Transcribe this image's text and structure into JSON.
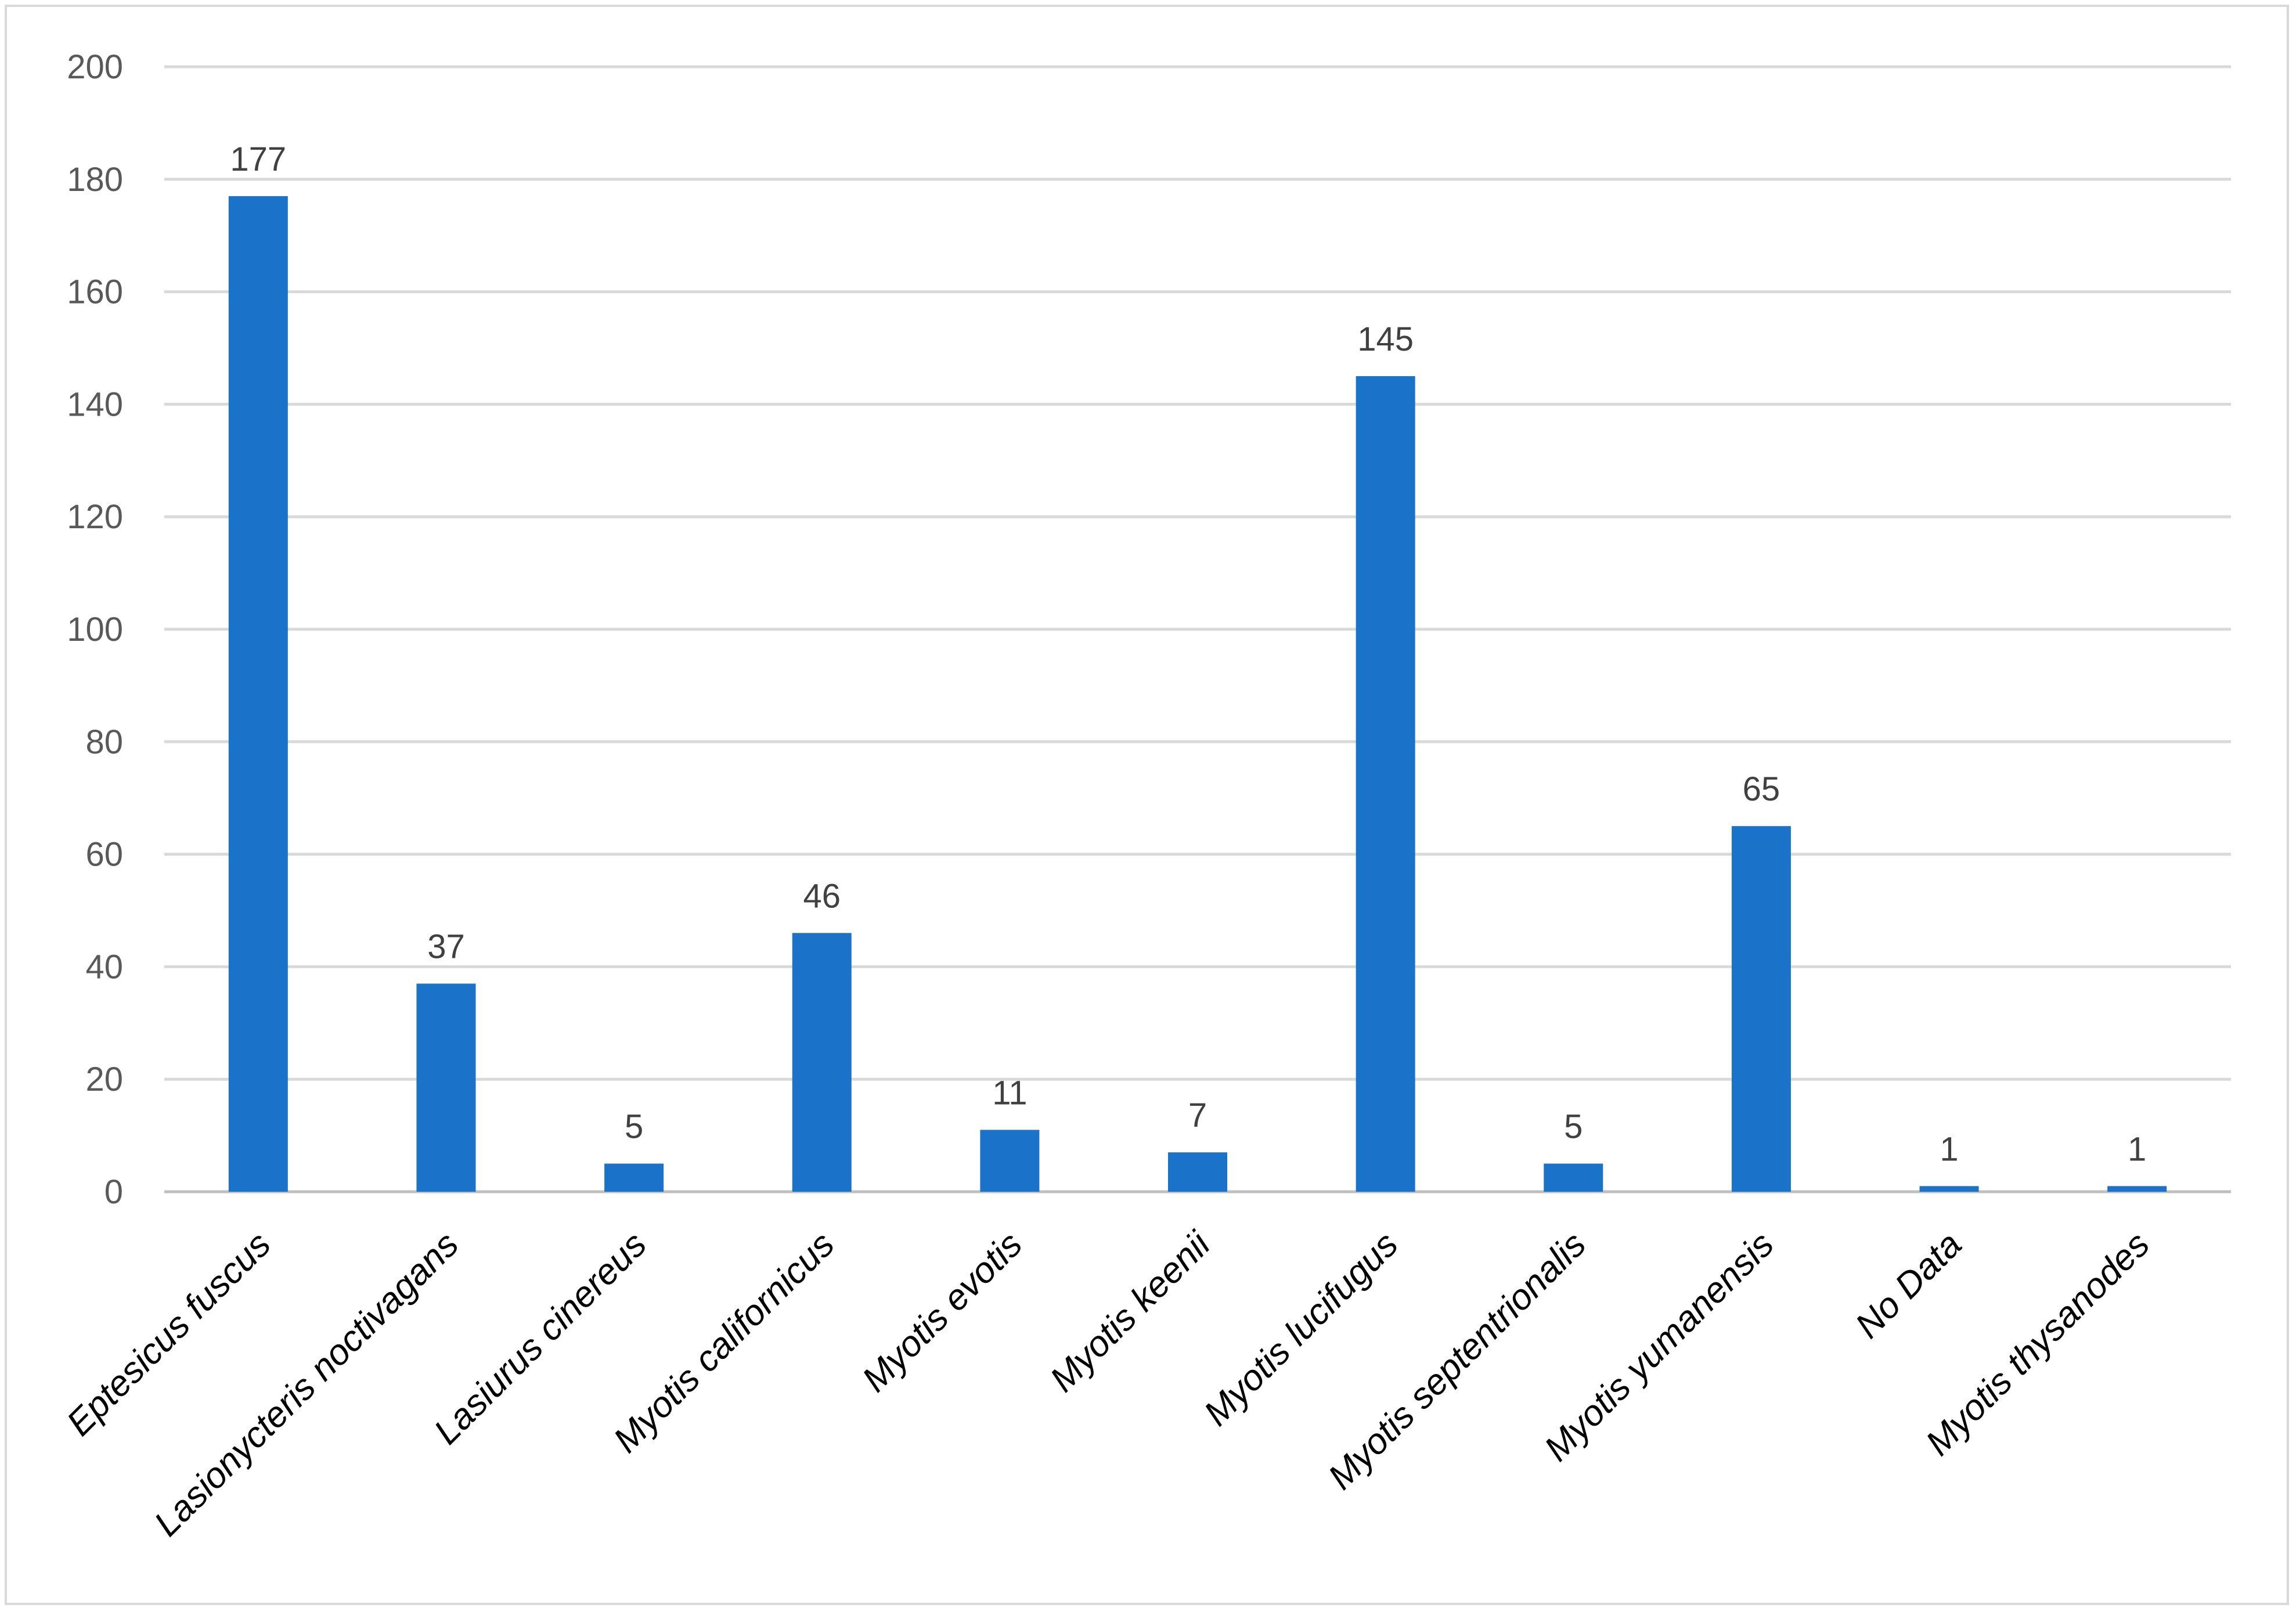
{
  "chart_data": {
    "type": "bar",
    "categories": [
      "Eptesicus fuscus",
      "Lasionycteris noctivagans",
      "Lasiurus cinereus",
      "Myotis californicus",
      "Myotis evotis",
      "Myotis keenii",
      "Myotis lucifugus",
      "Myotis septentrionalis",
      "Myotis yumanensis",
      "No Data",
      "Myotis thysanodes"
    ],
    "values": [
      177,
      37,
      5,
      46,
      11,
      7,
      145,
      5,
      65,
      1,
      1
    ],
    "data_labels": [
      "177",
      "37",
      "5",
      "46",
      "11",
      "7",
      "145",
      "5",
      "65",
      "1",
      "1"
    ],
    "title": "",
    "xlabel": "",
    "ylabel": "",
    "ylim": [
      0,
      200
    ],
    "yticks": [
      "0",
      "20",
      "40",
      "60",
      "80",
      "100",
      "120",
      "140",
      "160",
      "180",
      "200"
    ],
    "grid": true,
    "legend": "none",
    "colors": {
      "bar": "#1a73c8",
      "grid": "#d9d9d9",
      "tick_text": "#595959"
    }
  }
}
